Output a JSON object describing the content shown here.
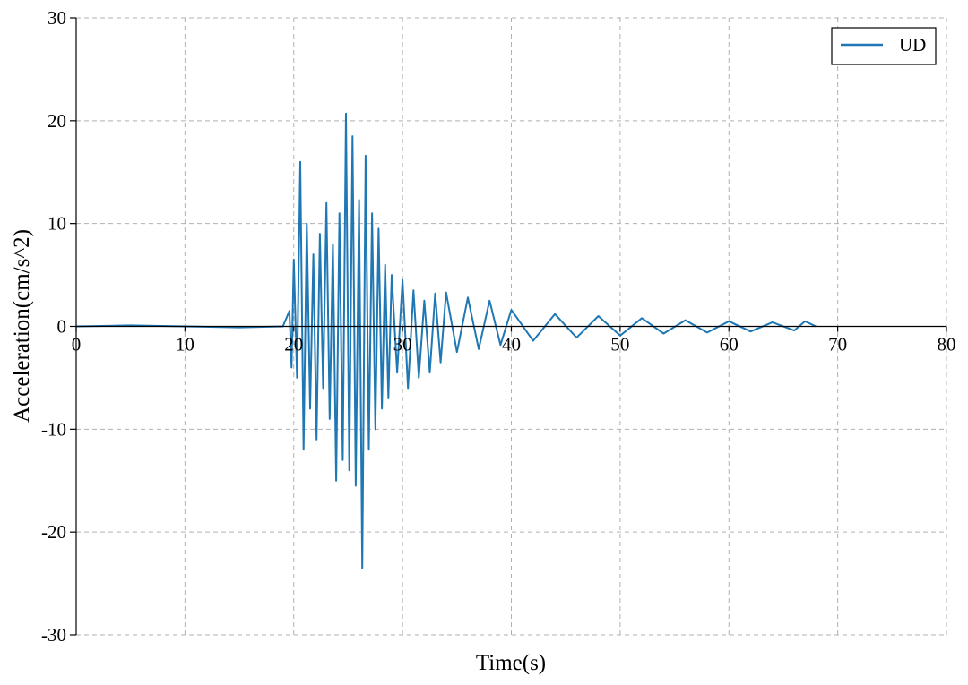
{
  "chart_data": {
    "type": "line",
    "xlabel": "Time(s)",
    "ylabel": "Acceleration(cm/s^2)",
    "xlim": [
      0,
      80
    ],
    "ylim": [
      -30,
      30
    ],
    "xticks": [
      0,
      10,
      20,
      30,
      40,
      50,
      60,
      70,
      80
    ],
    "yticks": [
      -30,
      -20,
      -10,
      0,
      10,
      20,
      30
    ],
    "grid": true,
    "legend_position": "top-right",
    "series": [
      {
        "name": "UD",
        "color": "#1f77b4",
        "x": [
          0,
          5,
          10,
          15,
          19,
          19.6,
          19.8,
          20.0,
          20.3,
          20.6,
          20.9,
          21.2,
          21.5,
          21.8,
          22.1,
          22.4,
          22.7,
          23.0,
          23.3,
          23.6,
          23.9,
          24.2,
          24.5,
          24.8,
          25.1,
          25.4,
          25.7,
          26.0,
          26.3,
          26.6,
          26.9,
          27.2,
          27.5,
          27.8,
          28.1,
          28.4,
          28.7,
          29.0,
          29.5,
          30.0,
          30.5,
          31.0,
          31.5,
          32.0,
          32.5,
          33.0,
          33.5,
          34.0,
          35.0,
          36.0,
          37.0,
          38.0,
          39.0,
          40.0,
          42.0,
          44.0,
          46.0,
          48.0,
          50.0,
          52.0,
          54.0,
          56.0,
          58.0,
          60.0,
          62.0,
          64.0,
          66.0,
          67.0,
          68.0
        ],
        "y": [
          0,
          0.1,
          0,
          -0.1,
          0,
          1.5,
          -4,
          6.5,
          -5,
          16,
          -12,
          10,
          -8,
          7,
          -11,
          9,
          -6,
          12,
          -9,
          8,
          -15,
          11,
          -13,
          20.7,
          -14,
          18.5,
          -15.5,
          12.3,
          -23.5,
          16.6,
          -12,
          11,
          -10,
          9.5,
          -8,
          6,
          -7,
          5,
          -4.5,
          4.5,
          -6,
          3.5,
          -5,
          2.5,
          -4.5,
          3.2,
          -3.5,
          3.3,
          -2.5,
          2.8,
          -2.2,
          2.5,
          -1.8,
          1.6,
          -1.4,
          1.2,
          -1.1,
          1.0,
          -0.9,
          0.8,
          -0.7,
          0.6,
          -0.6,
          0.5,
          -0.5,
          0.4,
          -0.4,
          0.5,
          0
        ]
      }
    ]
  }
}
